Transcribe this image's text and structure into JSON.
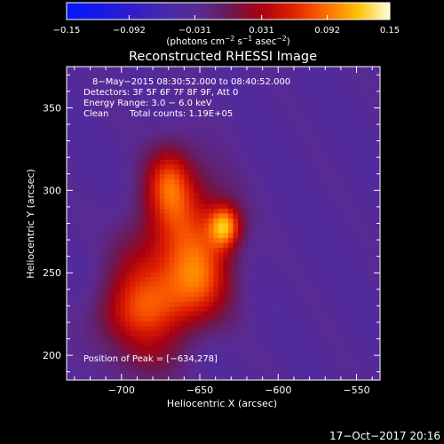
{
  "chart_data": {
    "type": "heatmap",
    "title": "Reconstructed RHESSI Image",
    "xlabel": "Heliocentric X (arcsec)",
    "ylabel": "Heliocentric Y (arcsec)",
    "xlim": [
      -735,
      -535
    ],
    "ylim": [
      185,
      375
    ],
    "x_ticks": [
      -700,
      -650,
      -600,
      -550
    ],
    "y_ticks": [
      200,
      250,
      300,
      350
    ],
    "x_tick_labels": [
      "−700",
      "−650",
      "−600",
      "−550"
    ],
    "y_tick_labels": [
      "200",
      "250",
      "300",
      "350"
    ],
    "colorbar": {
      "range": [
        -0.15,
        0.15
      ],
      "ticks": [
        -0.15,
        -0.092,
        -0.031,
        0.031,
        0.092,
        0.15
      ],
      "tick_labels": [
        "−0.15",
        "−0.092",
        "−0.031",
        "0.031",
        "0.092",
        "0.15"
      ],
      "unit_label": "(photons cm",
      "unit_exp1": "−2",
      "unit_mid": " s",
      "unit_exp2": "−1",
      "unit_mid2": " asec",
      "unit_exp3": "−2",
      "unit_end": ")"
    },
    "annotations": {
      "time_range": "8−May−2015 08:30:52.000 to 08:40:52.000",
      "detectors": "Detectors: 3F 5F 6F 7F 8F 9F, Att 0",
      "energy_range": "Energy Range: 3.0 − 6.0 keV",
      "method": "Clean",
      "total_counts": "Total counts: 1.19E+05",
      "peak_position": "Position of Peak = [−634,278]"
    },
    "peak": {
      "x": -634,
      "y": 278,
      "value": 0.15
    },
    "sources": [
      {
        "x": -634,
        "y": 278,
        "amp": 0.12,
        "sx": 7,
        "sy": 9
      },
      {
        "x": -650,
        "y": 275,
        "amp": 0.055,
        "sx": 18,
        "sy": 26
      },
      {
        "x": -670,
        "y": 305,
        "amp": 0.075,
        "sx": 10,
        "sy": 15
      },
      {
        "x": -665,
        "y": 278,
        "amp": 0.045,
        "sx": 15,
        "sy": 32
      },
      {
        "x": -668,
        "y": 235,
        "amp": 0.07,
        "sx": 22,
        "sy": 18
      },
      {
        "x": -695,
        "y": 222,
        "amp": 0.055,
        "sx": 18,
        "sy": 15
      },
      {
        "x": -648,
        "y": 248,
        "amp": 0.04,
        "sx": 12,
        "sy": 16
      },
      {
        "x": -690,
        "y": 258,
        "amp": 0.035,
        "sx": 13,
        "sy": 22
      },
      {
        "x": -685,
        "y": 195,
        "amp": 0.03,
        "sx": 15,
        "sy": 12
      }
    ],
    "background": -0.035,
    "grid": false,
    "legend": "none"
  },
  "footer": {
    "timestamp": "17−Oct−2017 20:16"
  }
}
